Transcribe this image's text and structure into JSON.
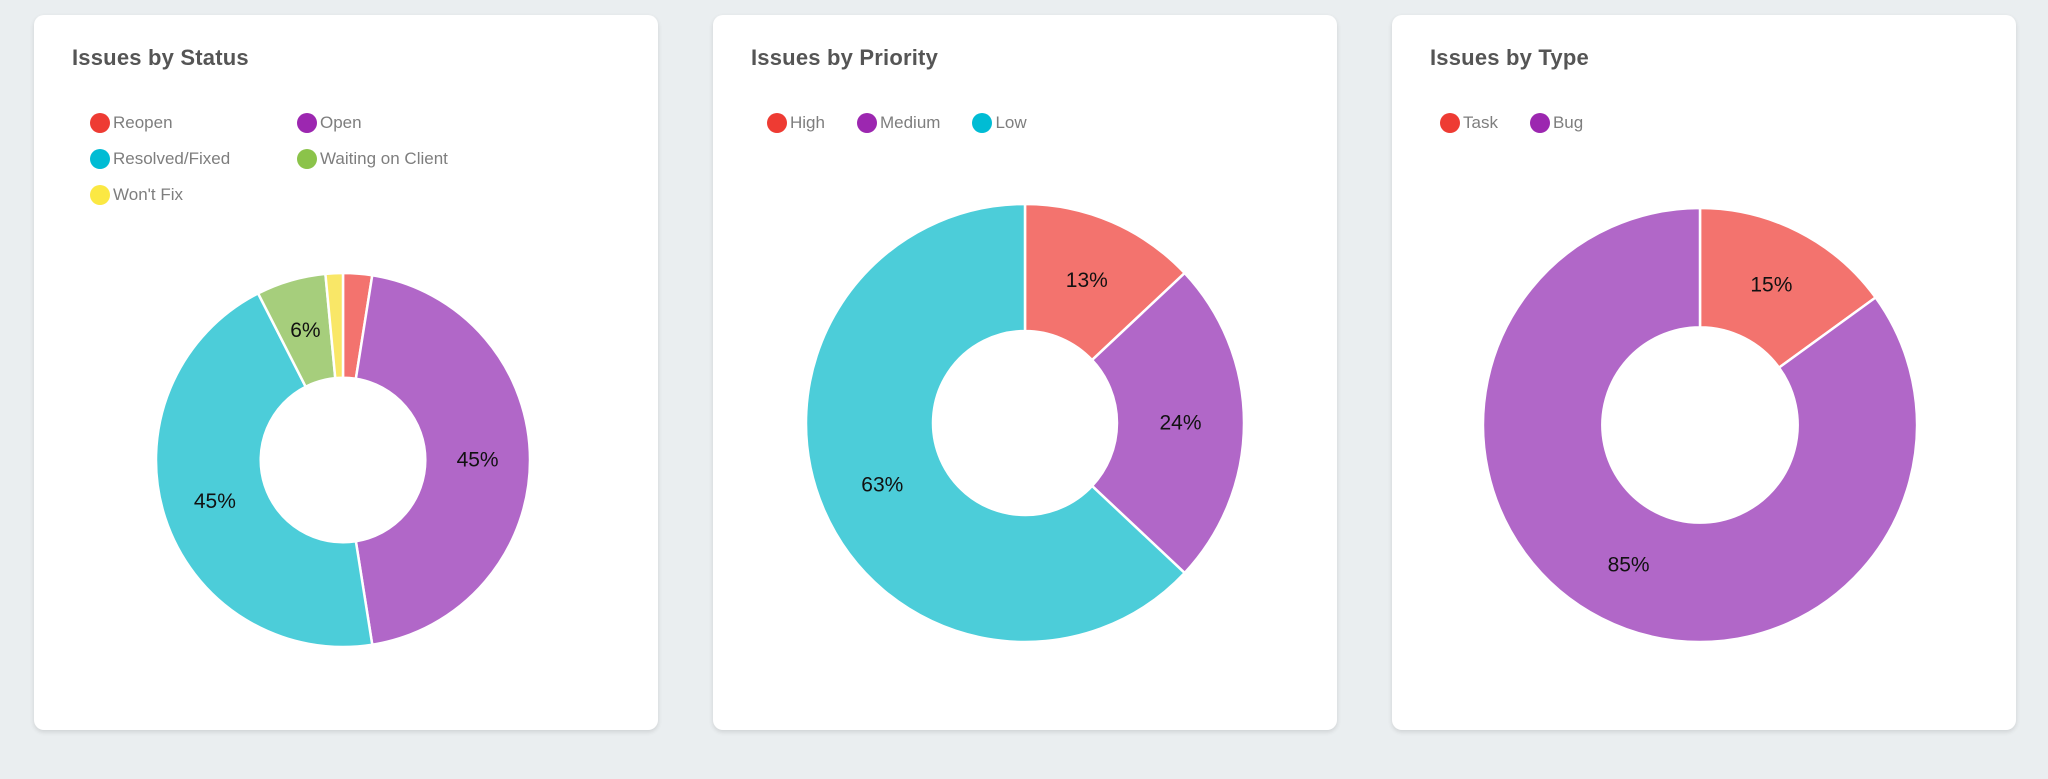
{
  "page": {
    "background_color": "#eaeef0",
    "card_background_color": "#ffffff",
    "title_color": "#555555",
    "legend_text_color": "#7e7e7e"
  },
  "chart_data": [
    {
      "type": "pie",
      "subtype": "donut",
      "title": "Issues by Status",
      "legend_position": "top",
      "categories": [
        "Reopen",
        "Open",
        "Resolved/Fixed",
        "Waiting on Client",
        "Won't Fix"
      ],
      "values": [
        2.5,
        45,
        45,
        6,
        1.5
      ],
      "data_labels": [
        "",
        "45%",
        "45%",
        "6%",
        ""
      ],
      "slice_colors": [
        "#f3736e",
        "#b167c8",
        "#4ccdd9",
        "#a6ce7c",
        "#f9e767"
      ],
      "legend_marker_colors": [
        "#ee3b33",
        "#9c27b0",
        "#00bcd4",
        "#8bc34a",
        "#fbe843"
      ]
    },
    {
      "type": "pie",
      "subtype": "donut",
      "title": "Issues by Priority",
      "legend_position": "top",
      "categories": [
        "High",
        "Medium",
        "Low"
      ],
      "values": [
        13,
        24,
        63
      ],
      "data_labels": [
        "13%",
        "24%",
        "63%"
      ],
      "slice_colors": [
        "#f3736e",
        "#b167c8",
        "#4ccdd9"
      ],
      "legend_marker_colors": [
        "#ee3b33",
        "#9c27b0",
        "#00bcd4"
      ]
    },
    {
      "type": "pie",
      "subtype": "donut",
      "title": "Issues by Type",
      "legend_position": "top",
      "categories": [
        "Task",
        "Bug"
      ],
      "values": [
        15,
        85
      ],
      "data_labels": [
        "15%",
        "85%"
      ],
      "slice_colors": [
        "#f3736e",
        "#b167c8"
      ],
      "legend_marker_colors": [
        "#ee3b33",
        "#9c27b0"
      ]
    }
  ]
}
